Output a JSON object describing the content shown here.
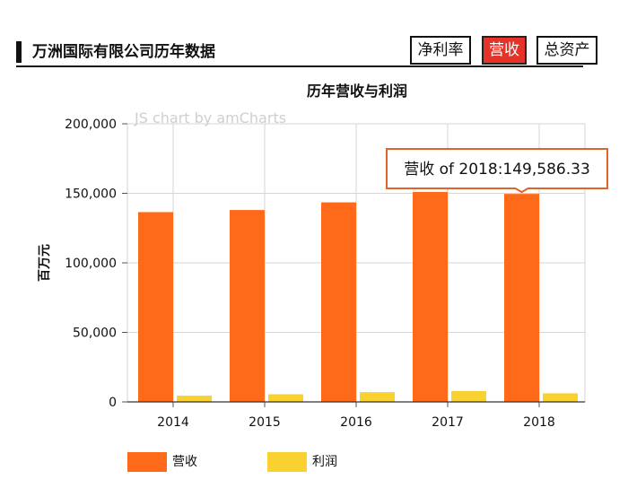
{
  "header": {
    "title": "万洲国际有限公司历年数据",
    "tabs": [
      {
        "label": "净利率",
        "active": false
      },
      {
        "label": "营收",
        "active": true
      },
      {
        "label": "总资产",
        "active": false
      }
    ]
  },
  "watermark": "JS chart by amCharts",
  "tooltip": {
    "text": "营收 of 2018:149,586.33"
  },
  "colors": {
    "revenue": "#ff6a1a",
    "profit": "#f9d232",
    "tab_active": "#e5332a",
    "tooltip_border": "#e0642a"
  },
  "chart_data": {
    "type": "bar",
    "title": "历年营收与利润",
    "ylabel": "百万元",
    "xlabel": "",
    "ylim": [
      0,
      200000
    ],
    "yticks": [
      "0",
      "50,000",
      "100,000",
      "150,000",
      "200,000"
    ],
    "categories": [
      "2014",
      "2015",
      "2016",
      "2017",
      "2018"
    ],
    "series": [
      {
        "name": "营收",
        "values": [
          136500,
          138000,
          143500,
          151000,
          149586.33
        ]
      },
      {
        "name": "利润",
        "values": [
          4500,
          5500,
          7000,
          7800,
          6200
        ]
      }
    ],
    "grid": true,
    "legend": "bottom"
  }
}
